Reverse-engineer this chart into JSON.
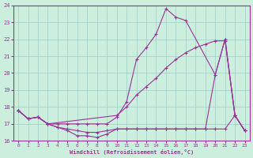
{
  "xlabel": "Windchill (Refroidissement éolien,°C)",
  "xlim": [
    -0.5,
    23.5
  ],
  "ylim": [
    16,
    24
  ],
  "yticks": [
    16,
    17,
    18,
    19,
    20,
    21,
    22,
    23,
    24
  ],
  "xticks": [
    0,
    1,
    2,
    3,
    4,
    5,
    6,
    7,
    8,
    9,
    10,
    11,
    12,
    13,
    14,
    15,
    16,
    17,
    18,
    19,
    20,
    21,
    22,
    23
  ],
  "bg_color": "#cceedd",
  "line_color": "#993399",
  "grid_color": "#99cccc",
  "lines": [
    {
      "x": [
        0,
        1,
        2,
        3,
        4,
        5,
        6,
        7,
        8,
        9,
        10,
        11,
        12,
        13,
        14,
        15,
        16,
        17,
        20,
        21,
        22,
        23
      ],
      "y": [
        17.8,
        17.3,
        17.4,
        17.0,
        17.0,
        17.0,
        17.0,
        17.0,
        17.0,
        17.0,
        17.4,
        18.3,
        20.8,
        21.5,
        22.3,
        23.8,
        23.3,
        23.1,
        19.9,
        22.0,
        17.5,
        16.6
      ]
    },
    {
      "x": [
        0,
        1,
        2,
        3,
        10,
        11,
        12,
        13,
        14,
        15,
        16,
        17,
        18,
        19,
        20,
        21,
        22,
        23
      ],
      "y": [
        17.8,
        17.3,
        17.4,
        17.0,
        17.5,
        18.0,
        18.7,
        19.2,
        19.7,
        20.3,
        20.8,
        21.2,
        21.5,
        21.7,
        21.9,
        21.9,
        17.5,
        16.6
      ]
    },
    {
      "x": [
        0,
        1,
        2,
        3,
        4,
        5,
        6,
        7,
        8,
        9,
        10,
        11,
        12,
        13,
        14,
        15,
        16,
        17,
        18,
        19,
        20,
        21,
        22,
        23
      ],
      "y": [
        17.8,
        17.3,
        17.4,
        17.0,
        16.8,
        16.6,
        16.3,
        16.3,
        16.2,
        16.4,
        16.7,
        16.7,
        16.7,
        16.7,
        16.7,
        16.7,
        16.7,
        16.7,
        16.7,
        16.7,
        19.9,
        22.0,
        17.5,
        16.6
      ]
    },
    {
      "x": [
        0,
        1,
        2,
        3,
        4,
        5,
        6,
        7,
        8,
        9,
        10,
        11,
        12,
        13,
        14,
        15,
        16,
        17,
        18,
        19,
        20,
        21,
        22,
        23
      ],
      "y": [
        17.8,
        17.3,
        17.4,
        17.0,
        16.8,
        16.7,
        16.6,
        16.5,
        16.5,
        16.6,
        16.7,
        16.7,
        16.7,
        16.7,
        16.7,
        16.7,
        16.7,
        16.7,
        16.7,
        16.7,
        16.7,
        16.7,
        17.5,
        16.6
      ]
    }
  ]
}
